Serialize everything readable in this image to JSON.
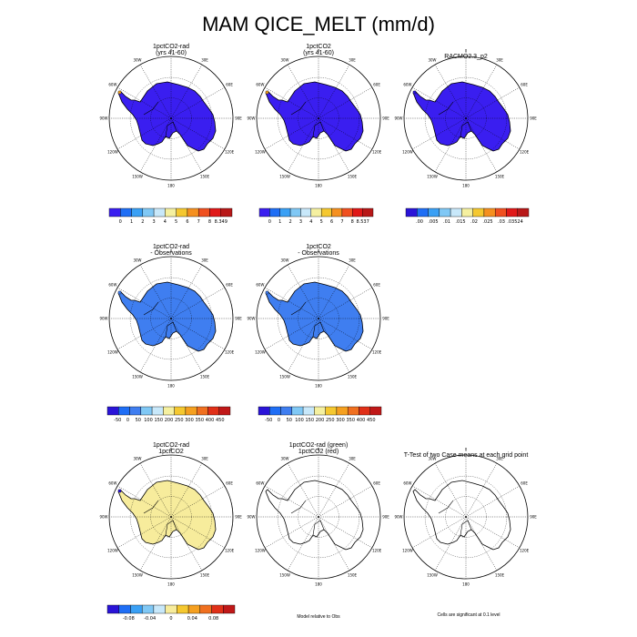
{
  "title": "MAM QICE_MELT (mm/d)",
  "lon_labels": [
    "0",
    "30E",
    "60E",
    "90E",
    "120E",
    "150E",
    "180",
    "150W",
    "120W",
    "90W",
    "60W",
    "30W"
  ],
  "panels": [
    {
      "id": "p1",
      "title": [
        "1pctCO2-rad",
        "(yrs 41-60)"
      ],
      "fill": "#3a1ef0",
      "tip": "#f0a020"
    },
    {
      "id": "p2",
      "title": [
        "1pctCO2",
        "(yrs 41-60)"
      ],
      "fill": "#3a1ef0",
      "tip": "#f0a020"
    },
    {
      "id": "p3",
      "title": [
        "RACMO2.3_p2"
      ],
      "fill": "#3a1ef0",
      "tip": "#2a14d8"
    },
    {
      "id": "p4",
      "title": [
        "1pctCO2-rad",
        "- Observations"
      ],
      "fill": "#3f7ef0",
      "tip": "#3f7ef0"
    },
    {
      "id": "p5",
      "title": [
        "1pctCO2",
        "- Observations"
      ],
      "fill": "#3f7ef0",
      "tip": "#3f7ef0"
    },
    {
      "id": "p6",
      "title": [
        "1pctCO2-rad",
        "1pctCO2"
      ],
      "fill": "#f7ec9c",
      "tip": "#2a14d8"
    },
    {
      "id": "p7",
      "title": [
        "1pctCO2-rad (green)",
        "1pctCO2 (red)"
      ],
      "fill": "none",
      "tip": "none"
    },
    {
      "id": "p8",
      "title": [
        "T-Test of two Case means at each grid point"
      ],
      "fill": "none",
      "tip": "none"
    }
  ],
  "colorbars": [
    {
      "id": "cb1",
      "colors": [
        "#3a1ef0",
        "#1f6ef5",
        "#3aa0f5",
        "#80c8f5",
        "#c8e8fa",
        "#f5f0a0",
        "#f5c830",
        "#f59020",
        "#f05020",
        "#e01818",
        "#b81818"
      ],
      "labels": [
        "0",
        "1",
        "2",
        "3",
        "4",
        "5",
        "6",
        "7",
        "8",
        "8.349"
      ]
    },
    {
      "id": "cb2",
      "colors": [
        "#3a1ef0",
        "#1f6ef5",
        "#3aa0f5",
        "#80c8f5",
        "#c8e8fa",
        "#f5f0a0",
        "#f5c830",
        "#f59020",
        "#f05020",
        "#e01818",
        "#b81818"
      ],
      "labels": [
        "0",
        "1",
        "2",
        "3",
        "4",
        "5",
        "6",
        "7",
        "8",
        "8.537"
      ]
    },
    {
      "id": "cb3",
      "colors": [
        "#2a14d8",
        "#1f6ef5",
        "#3aa0f5",
        "#80c8f5",
        "#c8e8fa",
        "#f5f0a0",
        "#f5c830",
        "#f59020",
        "#f05020",
        "#e01818",
        "#b81818"
      ],
      "labels": [
        ".00",
        ".005",
        ".01",
        ".015",
        ".02",
        ".025",
        ".03",
        ".03524"
      ]
    },
    {
      "id": "cb4",
      "colors": [
        "#2a14d8",
        "#1f6ef5",
        "#3f7ef0",
        "#80c8f5",
        "#c8e8fa",
        "#f5f0a0",
        "#f5c830",
        "#f5a020",
        "#f07020",
        "#e03018",
        "#c01818"
      ],
      "labels": [
        "-50",
        "0",
        "50",
        "100",
        "150",
        "200",
        "250",
        "300",
        "350",
        "400",
        "450"
      ]
    },
    {
      "id": "cb5",
      "colors": [
        "#2a14d8",
        "#1f6ef5",
        "#3f7ef0",
        "#80c8f5",
        "#c8e8fa",
        "#f5f0a0",
        "#f5c830",
        "#f5a020",
        "#f07020",
        "#e03018",
        "#c01818"
      ],
      "labels": [
        "-50",
        "0",
        "50",
        "100",
        "150",
        "200",
        "250",
        "300",
        "350",
        "400",
        "450"
      ]
    },
    {
      "id": "cb6",
      "colors": [
        "#2a14d8",
        "#1f6ef5",
        "#3aa0f5",
        "#80c8f5",
        "#c8e8fa",
        "#f7ec9c",
        "#f5c830",
        "#f5a020",
        "#f07020",
        "#e03018",
        "#c01818"
      ],
      "labels": [
        "-0.08",
        "-0.04",
        "0",
        "0.04",
        "0.08"
      ]
    }
  ],
  "notes": {
    "model_rel": "Model relative to Obs",
    "signif": "Cells are significant at 0.1 level"
  }
}
